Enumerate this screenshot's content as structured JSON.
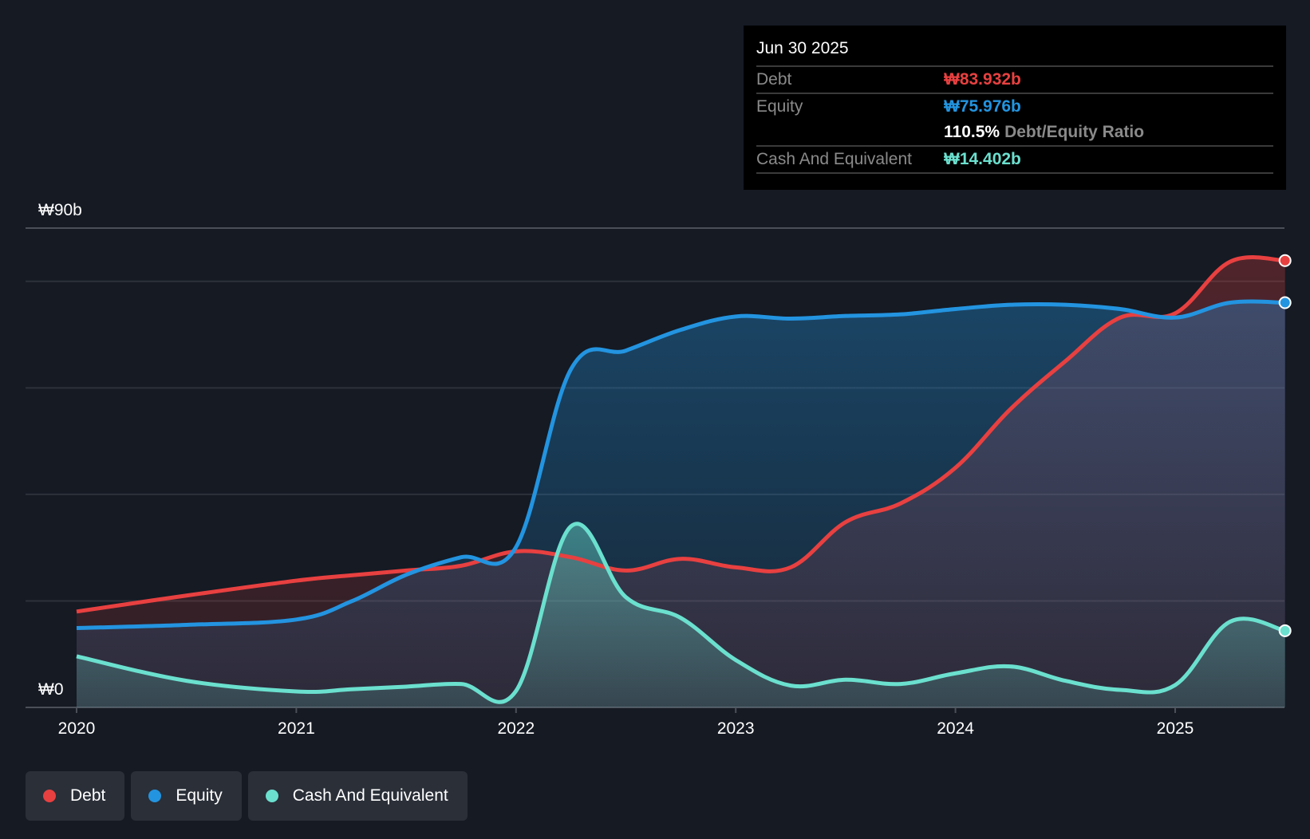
{
  "tooltip": {
    "date": "Jun 30 2025",
    "debt_label": "Debt",
    "debt_value": "₩83.932b",
    "equity_label": "Equity",
    "equity_value": "₩75.976b",
    "ratio_value": "110.5%",
    "ratio_label": "Debt/Equity Ratio",
    "cash_label": "Cash And Equivalent",
    "cash_value": "₩14.402b"
  },
  "legend": [
    {
      "label": "Debt",
      "color": "#e84040"
    },
    {
      "label": "Equity",
      "color": "#2394e0"
    },
    {
      "label": "Cash And Equivalent",
      "color": "#6be0cf"
    }
  ],
  "chart_data": {
    "type": "area",
    "title": "",
    "xlabel": "",
    "ylabel": "",
    "ylim": [
      0,
      90
    ],
    "xlim": [
      2019.77,
      2025.5
    ],
    "y_tick_labels": [
      "₩0",
      "₩90b"
    ],
    "gridlines": [
      0,
      20,
      40,
      60,
      80,
      90
    ],
    "x_ticks": [
      2020,
      2021,
      2022,
      2023,
      2024,
      2025
    ],
    "x_tick_labels": [
      "2020",
      "2021",
      "2022",
      "2023",
      "2024",
      "2025"
    ],
    "x": [
      2020,
      2020.5,
      2021,
      2021.25,
      2021.5,
      2021.75,
      2022,
      2022.25,
      2022.5,
      2022.75,
      2023,
      2023.25,
      2023.5,
      2023.75,
      2024,
      2024.25,
      2024.5,
      2024.75,
      2025,
      2025.25,
      2025.5
    ],
    "series": [
      {
        "name": "Debt",
        "color": "#e84040",
        "values": [
          18,
          21,
          23.8,
          24.8,
          25.7,
          26.6,
          29.3,
          28.2,
          25.7,
          27.9,
          26.3,
          26.3,
          34.8,
          38.3,
          45,
          56,
          65,
          73.2,
          74,
          83.7,
          83.9
        ]
      },
      {
        "name": "Equity",
        "color": "#2394e0",
        "values": [
          14.9,
          15.5,
          16.5,
          19.9,
          24.9,
          28.2,
          30.1,
          63.5,
          67,
          70.9,
          73.4,
          73,
          73.5,
          73.8,
          74.8,
          75.6,
          75.6,
          74.8,
          73.2,
          76,
          76
        ]
      },
      {
        "name": "Cash And Equivalent",
        "color": "#6be0cf",
        "values": [
          9.6,
          5,
          3,
          3.4,
          3.9,
          4.4,
          3.1,
          34,
          20.7,
          16.8,
          8.9,
          4.1,
          5.2,
          4.4,
          6.4,
          7.7,
          5,
          3.3,
          4.2,
          16.1,
          14.4
        ]
      }
    ]
  }
}
